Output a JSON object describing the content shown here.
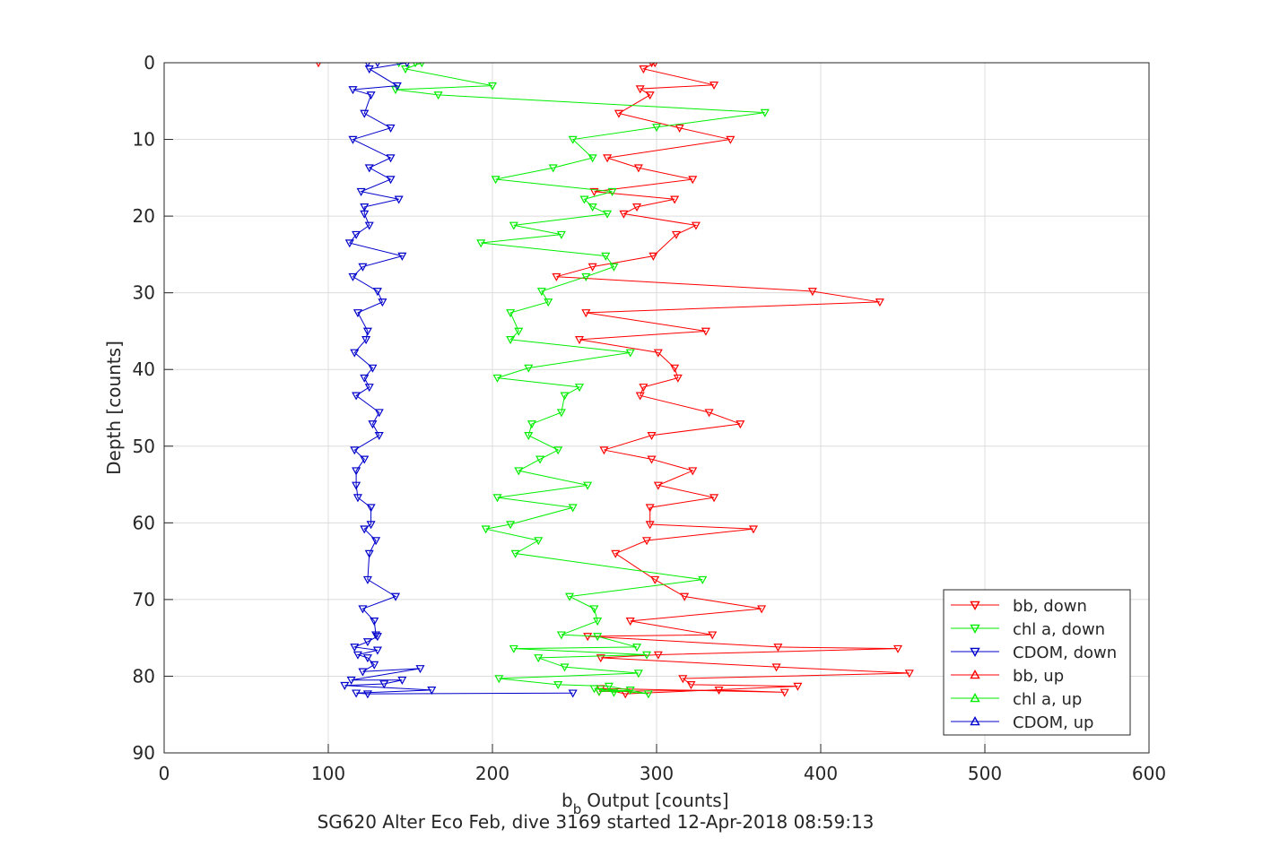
{
  "chart_data": {
    "type": "line",
    "title": "",
    "xlabel": "Output [counts]",
    "xlabel_prefix": "b",
    "xlabel_subscript": "b",
    "ylabel": "Depth [counts]",
    "caption": "SG620 Alter Eco Feb, dive 3169 started 12-Apr-2018 08:59:13",
    "xlim": [
      0,
      600
    ],
    "ylim": [
      0,
      90
    ],
    "y_reversed": true,
    "xticks": [
      0,
      100,
      200,
      300,
      400,
      500,
      600
    ],
    "yticks": [
      0,
      10,
      20,
      30,
      40,
      50,
      60,
      70,
      80,
      90
    ],
    "grid": true,
    "legend_position": "bottom-right",
    "series": [
      {
        "name": "bb, down",
        "color": "#ff0000",
        "marker": "triangle-down",
        "points": [
          [
            94,
            0
          ],
          [
            297,
            0
          ],
          [
            299,
            0
          ],
          [
            292,
            0.8
          ],
          [
            335,
            2.9
          ],
          [
            290,
            3.4
          ],
          [
            296,
            4.2
          ],
          [
            277,
            6.6
          ],
          [
            314,
            8.5
          ],
          [
            345,
            10
          ],
          [
            270,
            12.4
          ],
          [
            289,
            13.7
          ],
          [
            322,
            15.2
          ],
          [
            262,
            16.8
          ],
          [
            311,
            17.8
          ],
          [
            288,
            18.8
          ],
          [
            280,
            19.7
          ],
          [
            324,
            21.2
          ],
          [
            312,
            22.4
          ],
          [
            298,
            25.2
          ],
          [
            261,
            26.6
          ],
          [
            239,
            27.9
          ],
          [
            395,
            29.8
          ],
          [
            436,
            31.2
          ],
          [
            257,
            32.6
          ],
          [
            330,
            35
          ],
          [
            253,
            36.1
          ],
          [
            301,
            37.8
          ],
          [
            311,
            39.8
          ],
          [
            313,
            41.1
          ],
          [
            292,
            42.3
          ],
          [
            290,
            43.4
          ],
          [
            332,
            45.6
          ],
          [
            351,
            47.1
          ],
          [
            297,
            48.6
          ],
          [
            268,
            50.5
          ],
          [
            297,
            51.7
          ],
          [
            322,
            53.2
          ],
          [
            301,
            55.1
          ],
          [
            335,
            56.7
          ],
          [
            296,
            58
          ],
          [
            296,
            60.2
          ],
          [
            359,
            60.8
          ],
          [
            294,
            62.3
          ],
          [
            275,
            64
          ],
          [
            299,
            67.4
          ],
          [
            317,
            69.6
          ],
          [
            364,
            71.2
          ],
          [
            284,
            72.8
          ],
          [
            334,
            74.6
          ],
          [
            258,
            74.8
          ],
          [
            374,
            76.2
          ],
          [
            447,
            76.4
          ],
          [
            301,
            77.2
          ],
          [
            266,
            77.6
          ],
          [
            373,
            78.8
          ],
          [
            454,
            79.6
          ],
          [
            316,
            80.3
          ],
          [
            321,
            81.1
          ],
          [
            386,
            81.3
          ],
          [
            281,
            82.3
          ],
          [
            266,
            81.6
          ],
          [
            378,
            82.1
          ],
          [
            338,
            81.8
          ],
          [
            265,
            82
          ]
        ]
      },
      {
        "name": "chl a, down",
        "color": "#00ee00",
        "marker": "triangle-down",
        "points": [
          [
            143,
            0
          ],
          [
            153,
            0
          ],
          [
            157,
            0
          ],
          [
            147,
            0.8
          ],
          [
            200,
            3
          ],
          [
            141,
            3.5
          ],
          [
            167,
            4.2
          ],
          [
            366,
            6.5
          ],
          [
            300,
            8.4
          ],
          [
            249,
            10
          ],
          [
            261,
            12.4
          ],
          [
            237,
            13.7
          ],
          [
            202,
            15.2
          ],
          [
            273,
            16.8
          ],
          [
            256,
            17.8
          ],
          [
            261,
            18.8
          ],
          [
            270,
            19.7
          ],
          [
            213,
            21.2
          ],
          [
            242,
            22.4
          ],
          [
            193,
            23.5
          ],
          [
            269,
            25.2
          ],
          [
            274,
            26.6
          ],
          [
            257,
            27.9
          ],
          [
            230,
            29.8
          ],
          [
            234,
            31.2
          ],
          [
            211,
            32.6
          ],
          [
            216,
            35
          ],
          [
            211,
            36.1
          ],
          [
            284,
            37.8
          ],
          [
            222,
            39.8
          ],
          [
            203,
            41.1
          ],
          [
            253,
            42.3
          ],
          [
            244,
            43.4
          ],
          [
            242,
            45.6
          ],
          [
            224,
            47.1
          ],
          [
            222,
            48.6
          ],
          [
            240,
            50.5
          ],
          [
            229,
            51.7
          ],
          [
            216,
            53.2
          ],
          [
            258,
            55.1
          ],
          [
            203,
            56.7
          ],
          [
            249,
            58
          ],
          [
            211,
            60.2
          ],
          [
            196,
            60.8
          ],
          [
            228,
            62.3
          ],
          [
            214,
            64
          ],
          [
            328,
            67.4
          ],
          [
            247,
            69.6
          ],
          [
            262,
            71.2
          ],
          [
            264,
            72.8
          ],
          [
            242,
            74.6
          ],
          [
            264,
            74.8
          ],
          [
            288,
            76.2
          ],
          [
            213,
            76.4
          ],
          [
            294,
            77.2
          ],
          [
            228,
            77.6
          ],
          [
            244,
            78.8
          ],
          [
            289,
            79.6
          ],
          [
            204,
            80.3
          ],
          [
            240,
            81.1
          ],
          [
            271,
            81.3
          ],
          [
            295,
            82.3
          ],
          [
            262,
            81.6
          ],
          [
            274,
            82.1
          ],
          [
            284,
            81.8
          ],
          [
            265,
            82
          ]
        ]
      },
      {
        "name": "CDOM, down",
        "color": "#0000cc",
        "marker": "triangle-down",
        "points": [
          [
            124,
            0
          ],
          [
            130,
            0
          ],
          [
            148,
            0
          ],
          [
            125,
            0.8
          ],
          [
            142,
            3
          ],
          [
            115,
            3.5
          ],
          [
            126,
            4.2
          ],
          [
            122,
            6.6
          ],
          [
            138,
            8.5
          ],
          [
            115,
            10
          ],
          [
            138,
            12.4
          ],
          [
            125,
            13.7
          ],
          [
            138,
            15.2
          ],
          [
            120,
            16.8
          ],
          [
            143,
            17.8
          ],
          [
            122,
            18.8
          ],
          [
            122,
            19.7
          ],
          [
            125,
            21.2
          ],
          [
            117,
            22.4
          ],
          [
            113,
            23.5
          ],
          [
            145,
            25.2
          ],
          [
            121,
            26.6
          ],
          [
            115,
            27.9
          ],
          [
            130,
            29.8
          ],
          [
            133,
            31.2
          ],
          [
            118,
            32.6
          ],
          [
            124,
            35
          ],
          [
            123,
            36.1
          ],
          [
            116,
            37.8
          ],
          [
            127,
            39.8
          ],
          [
            122,
            41.1
          ],
          [
            125,
            42.3
          ],
          [
            117,
            43.4
          ],
          [
            131,
            45.6
          ],
          [
            127,
            47.1
          ],
          [
            131,
            48.6
          ],
          [
            116,
            50.5
          ],
          [
            122,
            51.7
          ],
          [
            117,
            53.2
          ],
          [
            117,
            55.1
          ],
          [
            118,
            56.7
          ],
          [
            126,
            58
          ],
          [
            126,
            60.2
          ],
          [
            122,
            60.8
          ],
          [
            129,
            62.3
          ],
          [
            125,
            64
          ],
          [
            124,
            67.4
          ],
          [
            141,
            69.6
          ],
          [
            121,
            71.2
          ],
          [
            128,
            72.8
          ],
          [
            129,
            74.6
          ],
          [
            130,
            74.8
          ],
          [
            124,
            75.5
          ],
          [
            116,
            76.2
          ],
          [
            130,
            76.6
          ],
          [
            118,
            77.2
          ],
          [
            124,
            77.6
          ],
          [
            128,
            78.5
          ],
          [
            121,
            79.4
          ],
          [
            156,
            79
          ],
          [
            114,
            80.5
          ],
          [
            145,
            80.5
          ],
          [
            134,
            81
          ],
          [
            110,
            81.2
          ],
          [
            163,
            81.8
          ],
          [
            117,
            82.2
          ],
          [
            124,
            82.3
          ],
          [
            249,
            82.2
          ]
        ]
      },
      {
        "name": "bb, up",
        "color": "#ff0000",
        "marker": "triangle-up",
        "points": []
      },
      {
        "name": "chl a, up",
        "color": "#00ee00",
        "marker": "triangle-up",
        "points": []
      },
      {
        "name": "CDOM, up",
        "color": "#0000cc",
        "marker": "triangle-up",
        "points": []
      }
    ]
  }
}
